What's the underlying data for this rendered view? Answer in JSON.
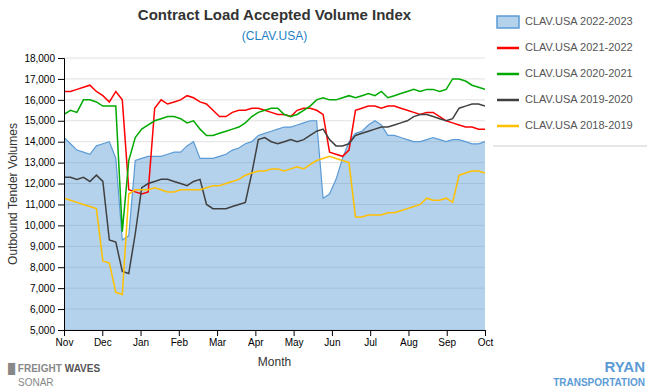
{
  "chart_data": {
    "type": "line",
    "title": "Contract Load Accepted Volume Index",
    "subtitle": "(CLAV.USA)",
    "xlabel": "Month",
    "ylabel": "Outbound Tender Volumes",
    "x": [
      0,
      0.1692,
      0.3385,
      0.5077,
      0.6769,
      0.8462,
      1.0154,
      1.1846,
      1.3538,
      1.5231,
      1.6923,
      1.8615,
      2.0308,
      2.2,
      2.3692,
      2.5385,
      2.7077,
      2.8769,
      3.0462,
      3.2154,
      3.3846,
      3.5538,
      3.7231,
      3.8923,
      4.0615,
      4.2308,
      4.4,
      4.5692,
      4.7385,
      4.9077,
      5.0769,
      5.2462,
      5.4154,
      5.5846,
      5.7538,
      5.9231,
      6.0923,
      6.2615,
      6.4308,
      6.6,
      6.7692,
      6.9385,
      7.1077,
      7.2769,
      7.4462,
      7.6154,
      7.7846,
      7.9538,
      8.1231,
      8.2923,
      8.4615,
      8.6308,
      8.8,
      8.9692,
      9.1385,
      9.3077,
      9.4769,
      9.6462,
      9.8154,
      9.9846,
      10.1538,
      10.3231,
      10.4923,
      10.6615,
      10.8308,
      11
    ],
    "xlim": [
      0,
      11
    ],
    "xticks": [
      {
        "value": 0,
        "label": "Nov"
      },
      {
        "value": 1,
        "label": "Dec"
      },
      {
        "value": 2,
        "label": "Jan"
      },
      {
        "value": 3,
        "label": "Feb"
      },
      {
        "value": 4,
        "label": "Mar"
      },
      {
        "value": 5,
        "label": "Apr"
      },
      {
        "value": 6,
        "label": "May"
      },
      {
        "value": 7,
        "label": "Jun"
      },
      {
        "value": 8,
        "label": "Jul"
      },
      {
        "value": 9,
        "label": "Aug"
      },
      {
        "value": 10,
        "label": "Sep"
      },
      {
        "value": 11,
        "label": "Oct"
      }
    ],
    "ylim": [
      5000,
      18000
    ],
    "yticks": [
      {
        "value": 5000,
        "label": "5,000"
      },
      {
        "value": 6000,
        "label": "6,000"
      },
      {
        "value": 7000,
        "label": "7,000"
      },
      {
        "value": 8000,
        "label": "8,000"
      },
      {
        "value": 9000,
        "label": "9,000"
      },
      {
        "value": 10000,
        "label": "10,000"
      },
      {
        "value": 11000,
        "label": "11,000"
      },
      {
        "value": 12000,
        "label": "12,000"
      },
      {
        "value": 13000,
        "label": "13,000"
      },
      {
        "value": 14000,
        "label": "14,000"
      },
      {
        "value": 15000,
        "label": "15,000"
      },
      {
        "value": 16000,
        "label": "16,000"
      },
      {
        "value": 17000,
        "label": "17,000"
      },
      {
        "value": 18000,
        "label": "18,000"
      }
    ],
    "grid": true,
    "legend": "right",
    "series": [
      {
        "name": "CLAV.USA 2022-2023",
        "type": "area",
        "color": "#5b9bd5",
        "values": [
          14200,
          13900,
          13600,
          13500,
          13400,
          13800,
          13900,
          14000,
          13200,
          9300,
          9500,
          13100,
          13200,
          13300,
          13300,
          13300,
          13400,
          13500,
          13500,
          13800,
          14000,
          13200,
          13200,
          13200,
          13300,
          13400,
          13600,
          13700,
          13900,
          14000,
          14300,
          14400,
          14500,
          14600,
          14700,
          14700,
          14800,
          14900,
          15000,
          15000,
          11300,
          11500,
          12200,
          13200,
          14000,
          14400,
          14500,
          14800,
          15000,
          14800,
          14300,
          14300,
          14200,
          14100,
          14000,
          14000,
          14100,
          14200,
          14100,
          14000,
          14100,
          14100,
          14000,
          13900,
          13900,
          14000
        ]
      },
      {
        "name": "CLAV.USA 2021-2022",
        "type": "line",
        "color": "#ff0000",
        "values": [
          16400,
          16400,
          16500,
          16600,
          16700,
          16400,
          16200,
          15900,
          16400,
          16000,
          11700,
          11600,
          11500,
          11600,
          15600,
          16000,
          15800,
          15900,
          16000,
          16200,
          16100,
          15900,
          15800,
          15500,
          15200,
          15200,
          15400,
          15500,
          15500,
          15600,
          15600,
          15500,
          15400,
          15300,
          15300,
          15200,
          15500,
          15600,
          15600,
          15500,
          15300,
          13500,
          13400,
          13300,
          13600,
          15500,
          15600,
          15700,
          15700,
          15600,
          15700,
          15700,
          15600,
          15500,
          15400,
          15300,
          15400,
          15400,
          15200,
          15000,
          14900,
          14800,
          14700,
          14700,
          14600,
          14600
        ]
      },
      {
        "name": "CLAV.USA 2020-2021",
        "type": "line",
        "color": "#00aa00",
        "values": [
          15300,
          15500,
          15400,
          16000,
          16000,
          15900,
          15700,
          15700,
          15700,
          9700,
          13100,
          14200,
          14600,
          14800,
          15000,
          15100,
          15200,
          15200,
          15100,
          14900,
          15000,
          14600,
          14300,
          14300,
          14400,
          14500,
          14600,
          14700,
          14900,
          15200,
          15400,
          15500,
          15600,
          15600,
          15300,
          15200,
          15300,
          15500,
          15700,
          16000,
          16100,
          16000,
          16000,
          16100,
          16200,
          16100,
          16200,
          16300,
          16200,
          16400,
          16100,
          16200,
          16300,
          16400,
          16500,
          16400,
          16500,
          16500,
          16400,
          16500,
          17000,
          17000,
          16900,
          16700,
          16600,
          16500
        ]
      },
      {
        "name": "CLAV.USA 2019-2020",
        "type": "line",
        "color": "#404040",
        "values": [
          12300,
          12300,
          12200,
          12300,
          12100,
          12400,
          12100,
          9300,
          9200,
          7800,
          7700,
          9600,
          11800,
          12000,
          12100,
          12200,
          12200,
          12100,
          12000,
          11900,
          12100,
          12200,
          11000,
          10800,
          10800,
          10800,
          10900,
          11000,
          11100,
          12500,
          14100,
          14200,
          14000,
          13900,
          14000,
          14100,
          14000,
          14100,
          14300,
          14500,
          14600,
          14100,
          13800,
          13800,
          13900,
          14300,
          14400,
          14500,
          14600,
          14700,
          14700,
          14800,
          14900,
          15000,
          15200,
          15300,
          15300,
          15200,
          15100,
          15000,
          15100,
          15600,
          15700,
          15800,
          15800,
          15700
        ]
      },
      {
        "name": "CLAV.USA 2018-2019",
        "type": "line",
        "color": "#ffc000",
        "values": [
          11300,
          11200,
          11100,
          11000,
          10900,
          10800,
          8300,
          8200,
          6800,
          6700,
          11500,
          11700,
          11700,
          11700,
          11800,
          11700,
          11600,
          11600,
          11700,
          11700,
          11700,
          11700,
          11800,
          11900,
          11900,
          12000,
          12100,
          12200,
          12400,
          12500,
          12600,
          12600,
          12700,
          12700,
          12600,
          12700,
          12800,
          12700,
          12900,
          13100,
          13200,
          13300,
          13200,
          13100,
          13000,
          10400,
          10400,
          10500,
          10500,
          10500,
          10600,
          10600,
          10700,
          10800,
          10900,
          11000,
          11300,
          11200,
          11200,
          11300,
          11100,
          12400,
          12500,
          12600,
          12600,
          12500
        ]
      }
    ],
    "annotations": [
      "█ FREIGHT",
      "WAVES",
      "SONAR",
      "RYAN",
      "TRANSPORTATION"
    ]
  }
}
